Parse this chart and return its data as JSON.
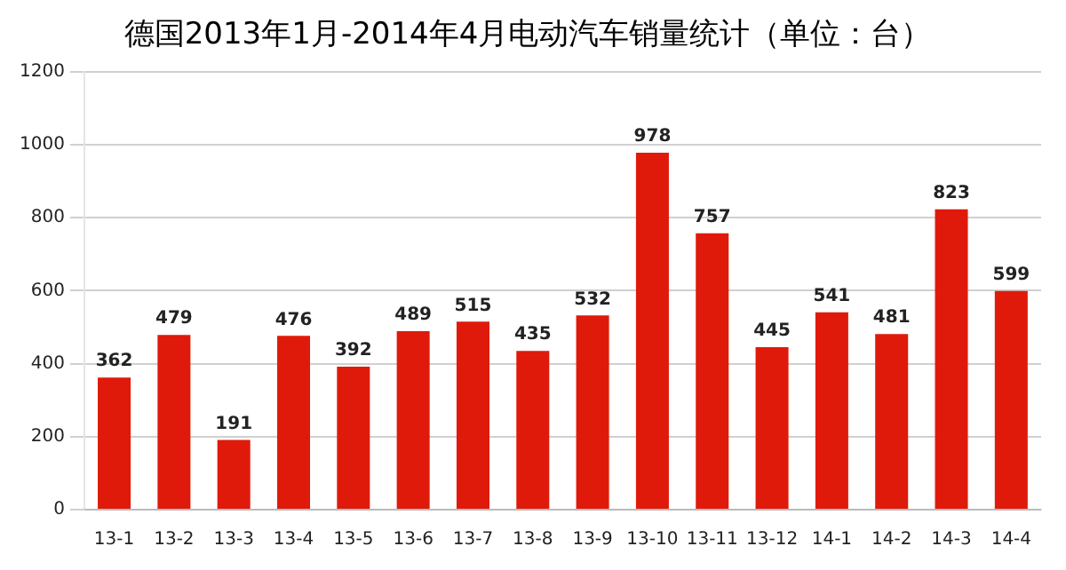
{
  "chart_data": {
    "type": "bar",
    "title": "德国2013年1月-2014年4月电动汽车销量统计（单位：台）",
    "categories": [
      "13-1",
      "13-2",
      "13-3",
      "13-4",
      "13-5",
      "13-6",
      "13-7",
      "13-8",
      "13-9",
      "13-10",
      "13-11",
      "13-12",
      "14-1",
      "14-2",
      "14-3",
      "14-4"
    ],
    "values": [
      362,
      479,
      191,
      476,
      392,
      489,
      515,
      435,
      532,
      978,
      757,
      445,
      541,
      481,
      823,
      599
    ],
    "color": "#e01a0a",
    "ylim": [
      0,
      1200
    ],
    "yticks": [
      0,
      200,
      400,
      600,
      800,
      1000,
      1200
    ],
    "grid": "y",
    "data_labels": true,
    "legend": false
  }
}
